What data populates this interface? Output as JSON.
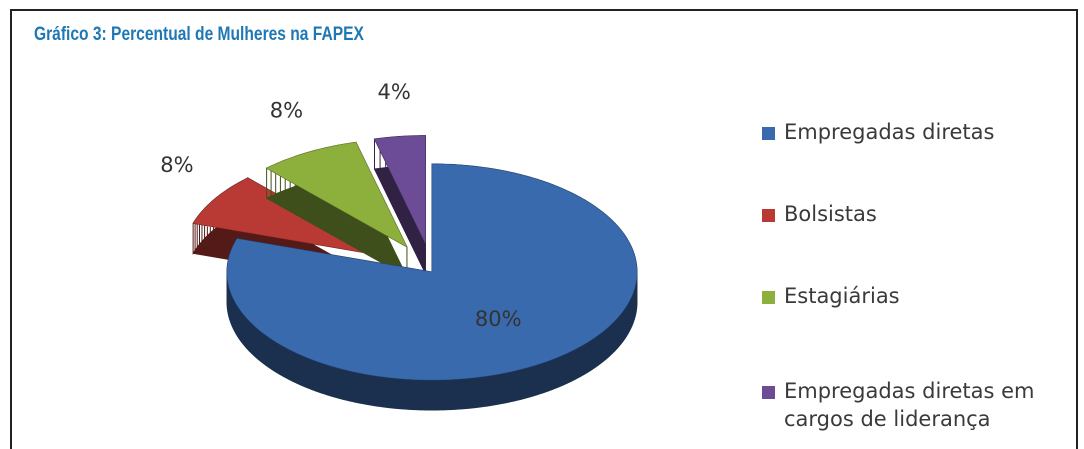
{
  "chart_data": {
    "type": "pie",
    "title": "Gráfico 3: Percentual de Mulheres na FAPEX",
    "categories": [
      "Empregadas diretas",
      "Bolsistas",
      "Estagiárias",
      "Empregadas diretas em cargos de liderança"
    ],
    "values": [
      80,
      8,
      8,
      4
    ],
    "value_labels": [
      "80%",
      "8%",
      "8%",
      "4%"
    ],
    "colors": [
      "#3a6aae",
      "#b93a35",
      "#8db03c",
      "#6c4c97"
    ],
    "legend": "right"
  }
}
